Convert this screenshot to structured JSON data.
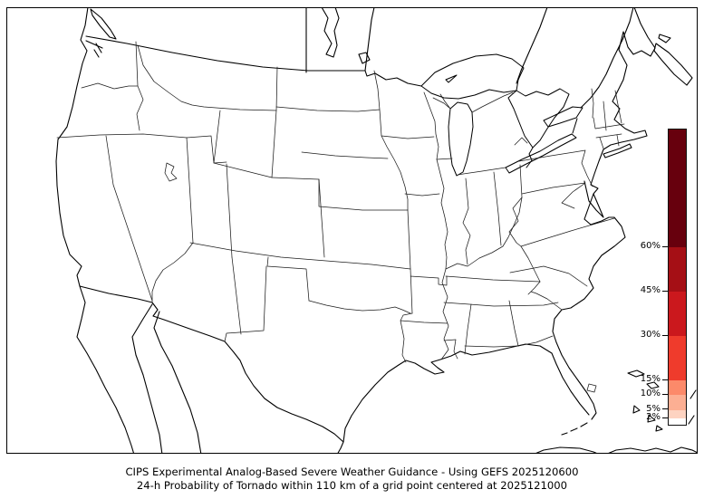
{
  "figure": {
    "caption_line1": "CIPS Experimental Analog-Based Severe Weather Guidance - Using GEFS 2025120600",
    "caption_line2": "24-h Probability of Tornado within 110 km of a grid point centered at 2025121000"
  },
  "map": {
    "region": "Continental United States with state borders, southern Canada, northern Mexico and Baja California, Great Lakes, Cuba and Bahamas coastlines",
    "background_color": "#ffffff",
    "line_color": "#000000",
    "shaded_probability_areas": "none visible (no region at or above 2%)"
  },
  "chart_data": {
    "type": "heatmap",
    "title": "CIPS Experimental Analog-Based Severe Weather Guidance - Using GEFS 2025120600",
    "subtitle": "24-h Probability of Tornado within 110 km of a grid point centered at 2025121000",
    "model": "GEFS",
    "model_run": "2025120600",
    "valid_time": "2025121000",
    "variable": "24-h Probability of Tornado within 110 km of a grid point",
    "values_note": "map area entirely white; all probabilities below lowest contour (2%)",
    "colorbar": {
      "orientation": "vertical",
      "position": "right",
      "scale_min_percent": 0,
      "scale_max_percent": 100,
      "ticks": [
        {
          "value": 60,
          "label": "60%"
        },
        {
          "value": 45,
          "label": "45%"
        },
        {
          "value": 30,
          "label": "30%"
        },
        {
          "value": 15,
          "label": "15%"
        },
        {
          "value": 10,
          "label": "10%"
        },
        {
          "value": 5,
          "label": "5%"
        },
        {
          "value": 2,
          "label": "2%"
        }
      ],
      "segments": [
        {
          "from": 0,
          "to": 2,
          "color": "#ffffff"
        },
        {
          "from": 2,
          "to": 5,
          "color": "#fdd3c1"
        },
        {
          "from": 5,
          "to": 10,
          "color": "#fcaf93"
        },
        {
          "from": 10,
          "to": 15,
          "color": "#fc8a6a"
        },
        {
          "from": 15,
          "to": 30,
          "color": "#ef3b2c"
        },
        {
          "from": 30,
          "to": 45,
          "color": "#cb181d"
        },
        {
          "from": 45,
          "to": 60,
          "color": "#a50f15"
        },
        {
          "from": 60,
          "to": 100,
          "color": "#67000d"
        }
      ]
    }
  }
}
